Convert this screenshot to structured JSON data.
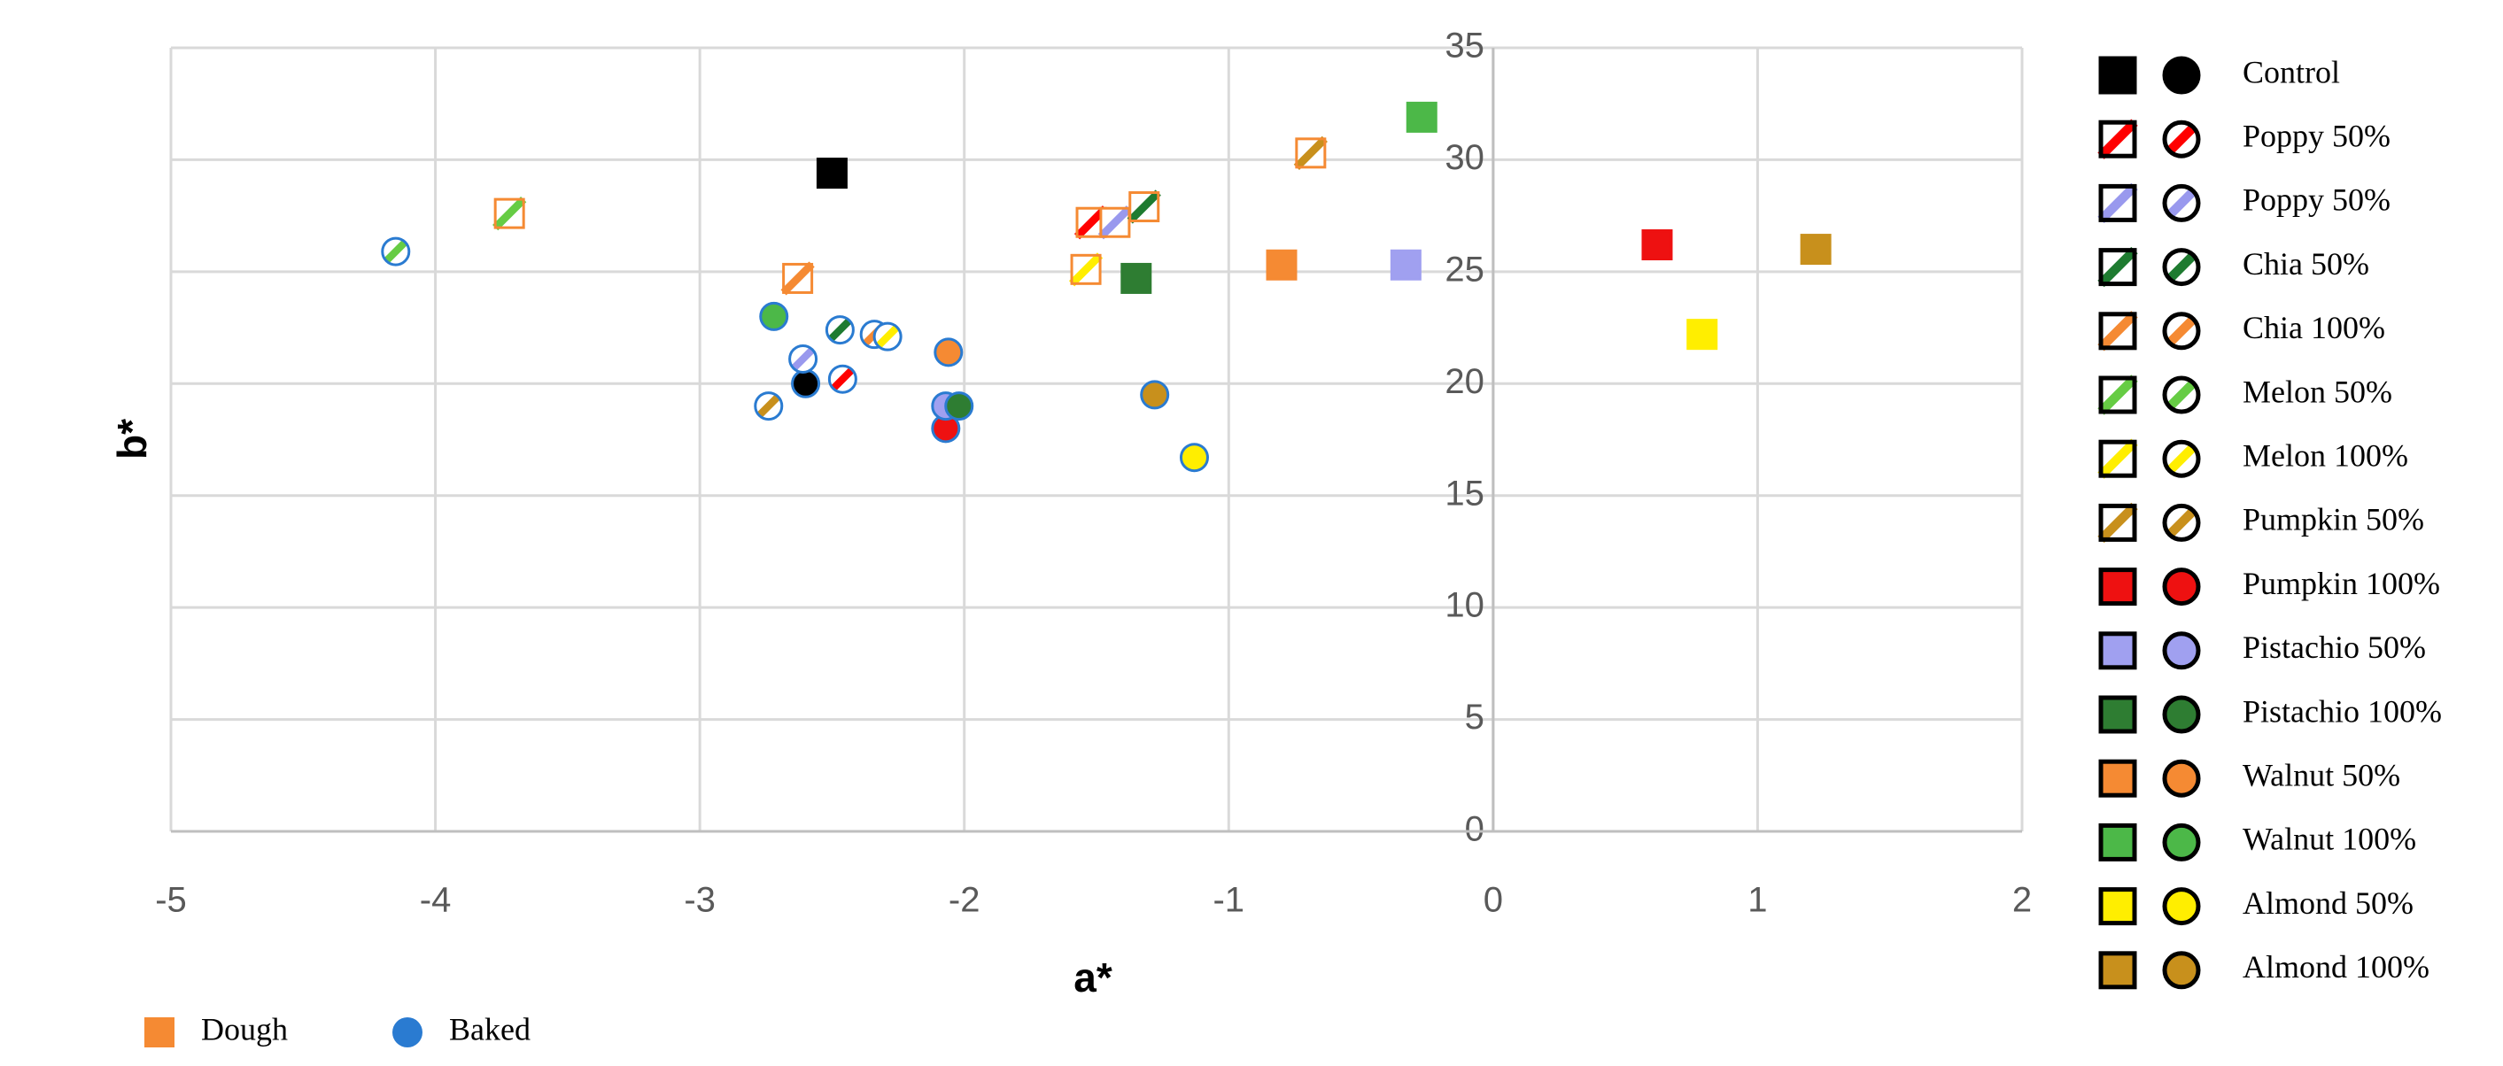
{
  "chart_data": {
    "type": "scatter",
    "xlabel": "a*",
    "ylabel": "b*",
    "xlim": [
      -5,
      2
    ],
    "ylim": [
      0,
      35
    ],
    "xticks": [
      -5,
      -4,
      -3,
      -2,
      -1,
      0,
      1,
      2
    ],
    "yticks": [
      0,
      5,
      10,
      15,
      20,
      25,
      30,
      35
    ],
    "grid": true,
    "groups": [
      {
        "name": "Dough",
        "color": "#f58a33",
        "shape": "square"
      },
      {
        "name": "Baked",
        "color": "#2a7bd1",
        "shape": "circle"
      }
    ],
    "series": [
      {
        "name": "Control",
        "color": "#000000",
        "pattern": "solid",
        "x": [
          -2.5,
          -2.6
        ],
        "y": [
          29.4,
          20.0
        ]
      },
      {
        "name": "Poppy 50%",
        "color": "#ff0000",
        "pattern": "striped",
        "x": [
          -1.52,
          -2.46
        ],
        "y": [
          27.2,
          20.2
        ]
      },
      {
        "name": "Poppy 50%",
        "color": "#9999ee",
        "pattern": "striped",
        "x": [
          -1.43,
          -2.61
        ],
        "y": [
          27.2,
          21.1
        ]
      },
      {
        "name": "Chia 50%",
        "color": "#1e7b30",
        "pattern": "striped",
        "x": [
          -1.32,
          -2.47
        ],
        "y": [
          27.9,
          22.4
        ]
      },
      {
        "name": "Chia 100%",
        "color": "#f58a33",
        "pattern": "striped",
        "x": [
          -2.63,
          -2.34
        ],
        "y": [
          24.7,
          22.2
        ]
      },
      {
        "name": "Melon 50%",
        "color": "#66cc44",
        "pattern": "striped",
        "x": [
          -3.72,
          -4.15
        ],
        "y": [
          27.6,
          25.9
        ]
      },
      {
        "name": "Melon 100%",
        "color": "#ffee00",
        "pattern": "striped",
        "x": [
          -1.54,
          -2.29
        ],
        "y": [
          25.1,
          22.1
        ]
      },
      {
        "name": "Pumpkin 50%",
        "color": "#c8901c",
        "pattern": "striped",
        "x": [
          -0.69,
          -2.74
        ],
        "y": [
          30.3,
          19.0
        ]
      },
      {
        "name": "Pumpkin 100%",
        "color": "#ee1111",
        "pattern": "solid",
        "x": [
          0.62,
          -2.07
        ],
        "y": [
          26.2,
          18.0
        ]
      },
      {
        "name": "Pistachio 50%",
        "color": "#a0a0f0",
        "pattern": "solid",
        "x": [
          -0.33,
          -2.07
        ],
        "y": [
          25.3,
          19.0
        ]
      },
      {
        "name": "Pistachio 100%",
        "color": "#2e7d32",
        "pattern": "solid",
        "x": [
          -1.35,
          -2.02
        ],
        "y": [
          24.7,
          19.0
        ]
      },
      {
        "name": "Walnut 50%",
        "color": "#f58a33",
        "pattern": "solid",
        "x": [
          -0.8,
          -2.06
        ],
        "y": [
          25.3,
          21.4
        ]
      },
      {
        "name": "Walnut 100%",
        "color": "#4cb848",
        "pattern": "solid",
        "x": [
          -0.27,
          -2.72
        ],
        "y": [
          31.9,
          23.0
        ]
      },
      {
        "name": "Almond 50%",
        "color": "#ffee00",
        "pattern": "solid",
        "x": [
          0.79,
          -1.13
        ],
        "y": [
          22.2,
          16.7
        ]
      },
      {
        "name": "Almond 100%",
        "color": "#c8901c",
        "pattern": "solid",
        "x": [
          1.22,
          -1.28
        ],
        "y": [
          26.0,
          19.5
        ]
      }
    ]
  }
}
